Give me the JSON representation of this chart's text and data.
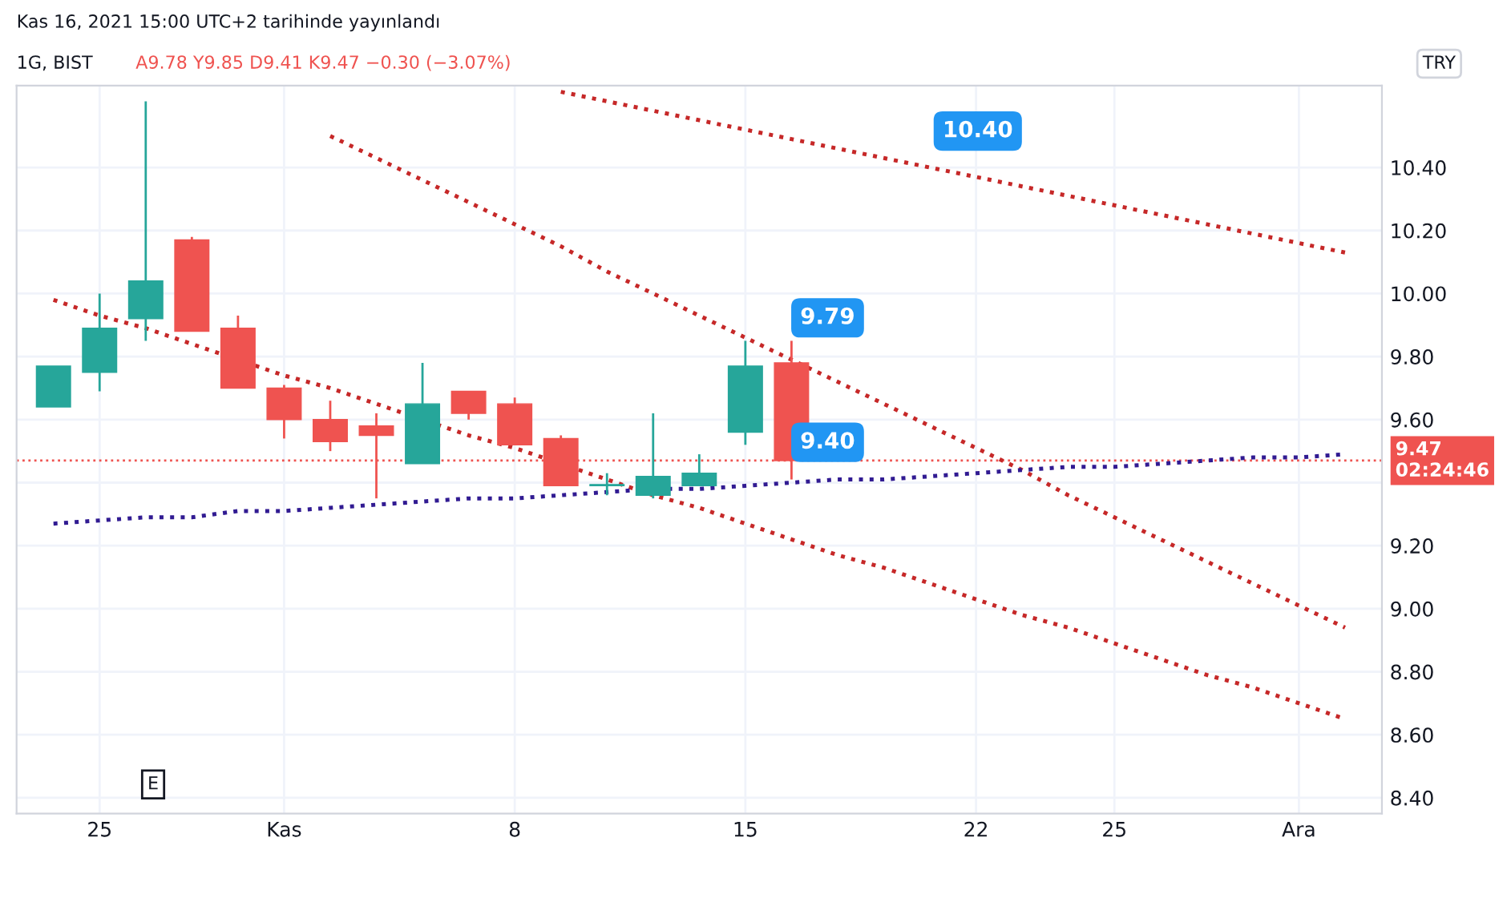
{
  "chart_data": {
    "type": "candlestick",
    "title": "1G, BIST",
    "subtitle": "A9.78 Y9.85 D9.41 K9.47 −0.30 (−3.07%)",
    "categories": [
      null,
      "25",
      null,
      null,
      null,
      "Kas",
      null,
      null,
      null,
      null,
      "8",
      null,
      null,
      null,
      null,
      "15",
      null,
      null,
      null,
      null,
      "22",
      null,
      null,
      "25",
      null,
      null,
      null,
      "Ara",
      null
    ],
    "ohlc": [
      [
        9.64,
        9.77,
        9.64,
        9.77
      ],
      [
        9.75,
        10.0,
        9.69,
        9.89
      ],
      [
        9.92,
        10.61,
        9.85,
        10.04
      ],
      [
        10.17,
        10.18,
        9.88,
        9.88
      ],
      [
        9.89,
        9.93,
        9.7,
        9.7
      ],
      [
        9.7,
        9.71,
        9.54,
        9.6
      ],
      [
        9.6,
        9.66,
        9.5,
        9.53
      ],
      [
        9.58,
        9.62,
        9.35,
        9.55
      ],
      [
        9.46,
        9.78,
        9.46,
        9.65
      ],
      [
        9.69,
        9.69,
        9.6,
        9.62
      ],
      [
        9.65,
        9.67,
        9.52,
        9.52
      ],
      [
        9.54,
        9.55,
        9.39,
        9.39
      ],
      [
        9.39,
        9.43,
        9.36,
        9.39
      ],
      [
        9.36,
        9.62,
        9.35,
        9.42
      ],
      [
        9.39,
        9.49,
        9.39,
        9.43
      ],
      [
        9.56,
        9.85,
        9.52,
        9.77
      ],
      [
        9.78,
        9.85,
        9.41,
        9.47
      ],
      null,
      null,
      null,
      null,
      null,
      null,
      null,
      null,
      null,
      null,
      null,
      null
    ],
    "colors": [
      "#26a69a",
      "#26a69a",
      "#26a69a",
      "#ef5350",
      "#ef5350",
      "#ef5350",
      "#ef5350",
      "#ef5350",
      "#26a69a",
      "#ef5350",
      "#ef5350",
      "#ef5350",
      "#26a69a",
      "#26a69a",
      "#26a69a",
      "#26a69a",
      "#ef5350",
      null,
      null,
      null,
      null,
      null,
      null,
      null,
      null,
      null,
      null,
      null,
      null
    ],
    "series": [
      {
        "type": "line",
        "color": "#c62828",
        "values": [
          null,
          null,
          null,
          null,
          null,
          null,
          null,
          null,
          null,
          null,
          null,
          10.64,
          10.61,
          10.58,
          10.55,
          10.52,
          10.49,
          10.46,
          10.43,
          10.4,
          10.37,
          10.34,
          10.31,
          10.28,
          10.25,
          10.22,
          10.19,
          10.16,
          10.13
        ]
      },
      {
        "type": "line",
        "color": "#c62828",
        "values": [
          null,
          null,
          null,
          null,
          null,
          null,
          10.5,
          10.43,
          10.36,
          10.29,
          10.22,
          10.15,
          10.07,
          10.0,
          9.93,
          9.86,
          9.79,
          9.72,
          9.65,
          9.58,
          9.51,
          9.44,
          9.36,
          9.29,
          9.22,
          9.15,
          9.08,
          9.01,
          8.94
        ]
      },
      {
        "type": "line",
        "color": "#c62828",
        "values": [
          9.98,
          9.93,
          9.89,
          9.84,
          null,
          9.74,
          9.7,
          9.65,
          null,
          9.55,
          9.51,
          9.46,
          9.41,
          9.36,
          9.32,
          9.27,
          9.22,
          9.17,
          9.13,
          9.08,
          9.03,
          8.98,
          8.94,
          8.89,
          8.84,
          8.79,
          8.75,
          8.7,
          8.65
        ]
      },
      {
        "type": "line",
        "color": "#311b92",
        "values": [
          9.27,
          9.28,
          9.29,
          9.29,
          9.31,
          9.31,
          9.32,
          9.33,
          9.34,
          9.35,
          9.35,
          9.36,
          9.37,
          9.38,
          9.38,
          9.39,
          9.4,
          9.41,
          9.41,
          9.42,
          9.43,
          9.44,
          9.45,
          9.45,
          9.46,
          9.47,
          9.48,
          9.48,
          9.49
        ]
      }
    ],
    "line_style": "dotted",
    "ylim": [
      8.35,
      10.66
    ],
    "yticks": [
      {
        "value": 8.4,
        "label": "8.40"
      },
      {
        "value": 8.6,
        "label": "8.60"
      },
      {
        "value": 8.8,
        "label": "8.80"
      },
      {
        "value": 9.0,
        "label": "9.00"
      },
      {
        "value": 9.2,
        "label": "9.20"
      },
      {
        "value": 9.4,
        "label": null
      },
      {
        "value": 9.6,
        "label": "9.60"
      },
      {
        "value": 9.8,
        "label": "9.80"
      },
      {
        "value": 10.0,
        "label": "10.00"
      },
      {
        "value": 10.2,
        "label": "10.20"
      },
      {
        "value": 10.4,
        "label": "10.40"
      }
    ],
    "ref_lines": [
      {
        "axis": "y",
        "value": 9.47,
        "label": "9.47\n02:24:46",
        "color": "#ef5350",
        "line_style": "dotted"
      }
    ],
    "grid": true,
    "annotations": [
      "Kas 16, 2021 15:00 UTC+2 tarihinde yayınlandı",
      "E",
      "TRY",
      "10.40",
      "9.79",
      "9.40"
    ]
  }
}
